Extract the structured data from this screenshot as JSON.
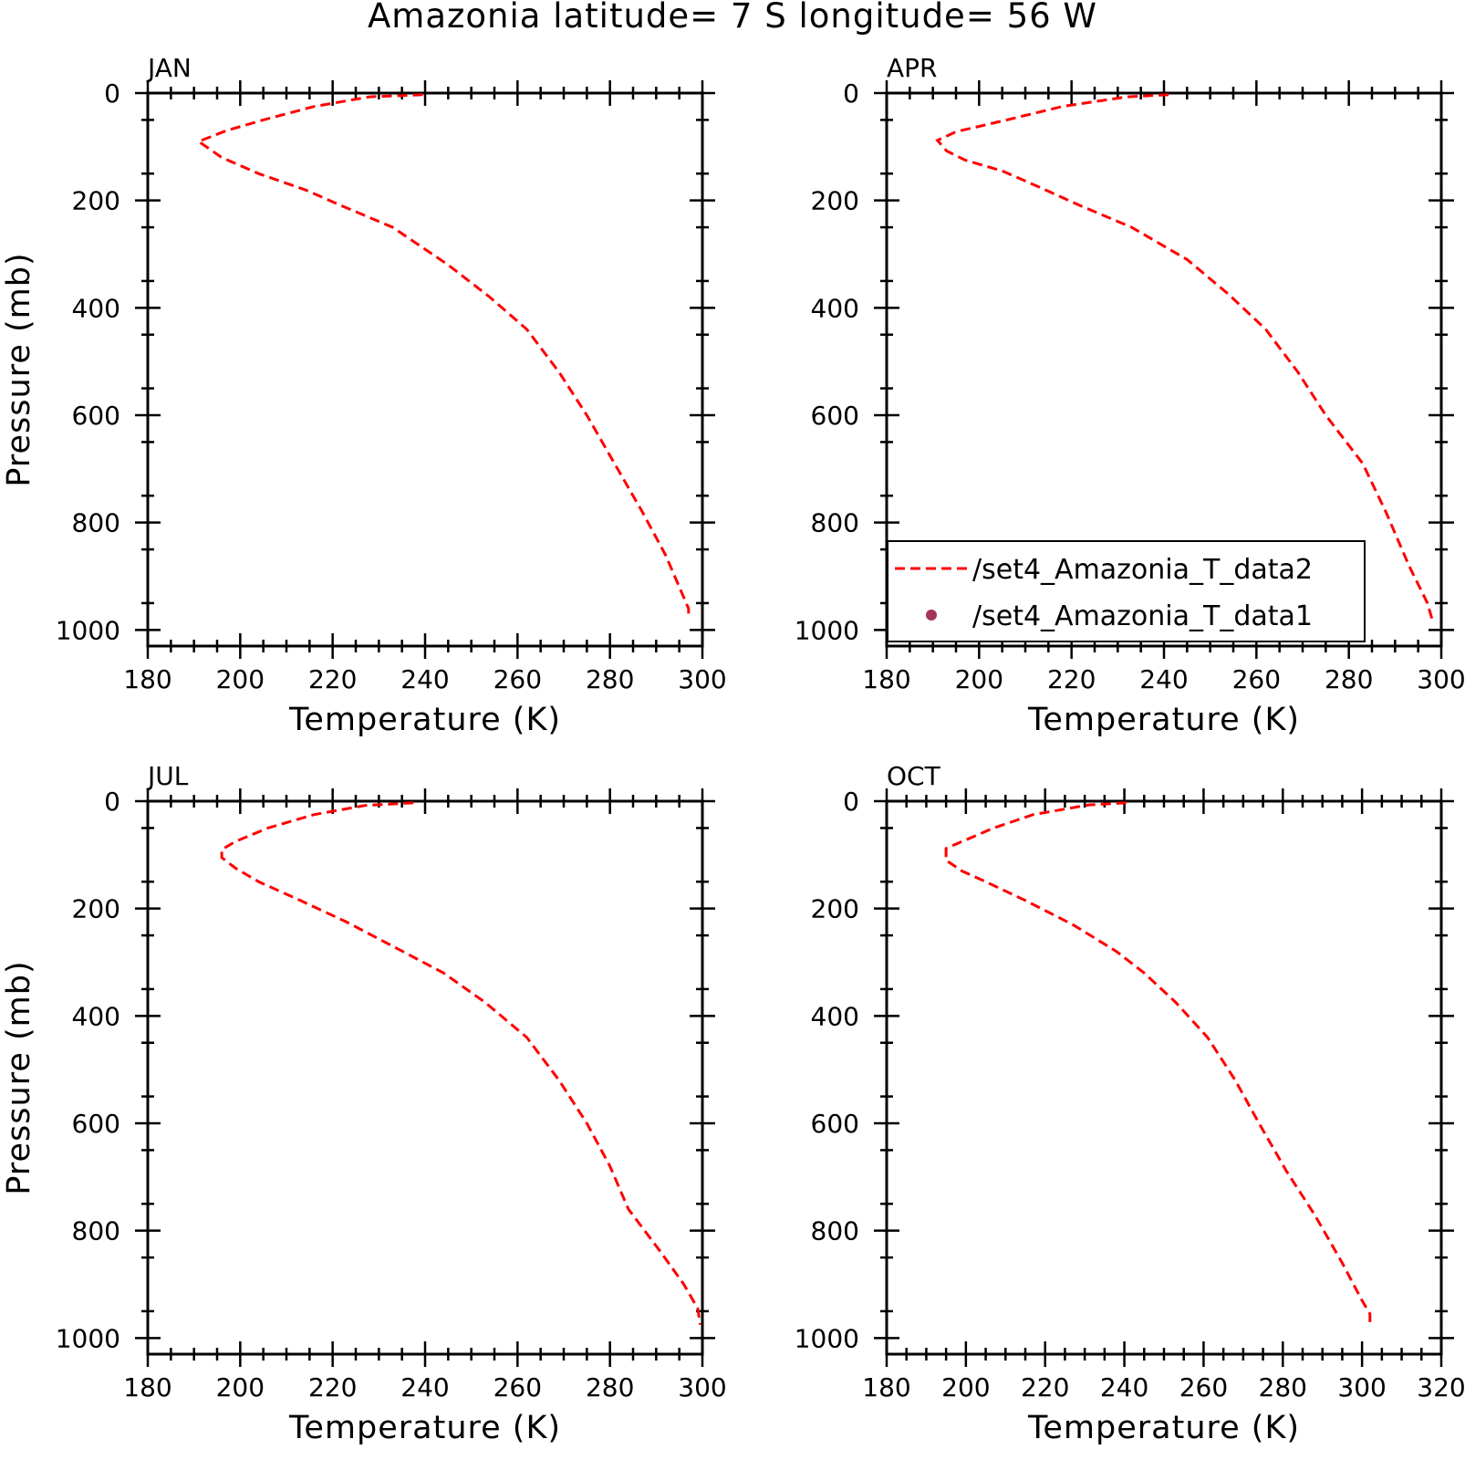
{
  "title": "Amazonia  latitude= 7 S longitude= 56 W",
  "legend": {
    "entries": [
      {
        "label": "/set4_Amazonia_T_data2",
        "style": "dashed-line",
        "color": "#ff0000"
      },
      {
        "label": "/set4_Amazonia_T_data1",
        "style": "dot",
        "color": "#a8325e"
      }
    ]
  },
  "chart_data": [
    {
      "type": "line",
      "panel": "JAN",
      "xlabel": "Temperature (K)",
      "ylabel": "Pressure (mb)",
      "xlim": [
        180,
        300
      ],
      "ylim": [
        1030,
        0
      ],
      "y_inverted": true,
      "xticks": [
        "180",
        "200",
        "220",
        "240",
        "260",
        "280",
        "300"
      ],
      "yticks": [
        "0",
        "200",
        "400",
        "600",
        "800",
        "1000"
      ],
      "series": [
        {
          "color": "#ff0000",
          "style": "dashed",
          "points": [
            [
              239.5,
              3
            ],
            [
              228,
              7
            ],
            [
              216,
              25
            ],
            [
              205,
              50
            ],
            [
              197,
              70
            ],
            [
              191,
              90
            ],
            [
              196,
              120
            ],
            [
              204,
              150
            ],
            [
              214,
              180
            ],
            [
              222,
              210
            ],
            [
              233,
              250
            ],
            [
              245,
              320
            ],
            [
              254,
              380
            ],
            [
              262,
              440
            ],
            [
              269,
              520
            ],
            [
              275,
              600
            ],
            [
              281,
              690
            ],
            [
              287,
              780
            ],
            [
              292,
              860
            ],
            [
              295,
              920
            ],
            [
              297,
              960
            ],
            [
              297,
              975
            ]
          ]
        }
      ]
    },
    {
      "type": "line",
      "panel": "APR",
      "xlabel": "Temperature (K)",
      "ylabel": "",
      "xlim": [
        180,
        300
      ],
      "ylim": [
        1030,
        0
      ],
      "y_inverted": true,
      "xticks": [
        "180",
        "200",
        "220",
        "240",
        "260",
        "280",
        "300"
      ],
      "yticks": [
        "0",
        "200",
        "400",
        "600",
        "800",
        "1000"
      ],
      "legend_placement": "bottom-left",
      "series": [
        {
          "color": "#ff0000",
          "style": "dashed",
          "points": [
            [
              241,
              3
            ],
            [
              232,
              7
            ],
            [
              218,
              25
            ],
            [
              206,
              50
            ],
            [
              195,
              72
            ],
            [
              191,
              88
            ],
            [
              193,
              108
            ],
            [
              197,
              125
            ],
            [
              205,
              145
            ],
            [
              213,
              175
            ],
            [
              222,
              210
            ],
            [
              233,
              250
            ],
            [
              245,
              310
            ],
            [
              254,
              375
            ],
            [
              262,
              440
            ],
            [
              269,
              520
            ],
            [
              275,
              600
            ],
            [
              283,
              690
            ],
            [
              288,
              780
            ],
            [
              293,
              880
            ],
            [
              297,
              950
            ],
            [
              298,
              980
            ]
          ]
        }
      ]
    },
    {
      "type": "line",
      "panel": "JUL",
      "xlabel": "Temperature (K)",
      "ylabel": "Pressure (mb)",
      "xlim": [
        180,
        300
      ],
      "ylim": [
        1030,
        0
      ],
      "y_inverted": true,
      "xticks": [
        "180",
        "200",
        "220",
        "240",
        "260",
        "280",
        "300"
      ],
      "yticks": [
        "0",
        "200",
        "400",
        "600",
        "800",
        "1000"
      ],
      "series": [
        {
          "color": "#ff0000",
          "style": "dashed",
          "points": [
            [
              237.5,
              3
            ],
            [
              227,
              8
            ],
            [
              216,
              25
            ],
            [
              206,
              50
            ],
            [
              199,
              75
            ],
            [
              196,
              90
            ],
            [
              196,
              105
            ],
            [
              199,
              125
            ],
            [
              204,
              150
            ],
            [
              213,
              185
            ],
            [
              223,
              225
            ],
            [
              233,
              270
            ],
            [
              244,
              320
            ],
            [
              253,
              375
            ],
            [
              262,
              440
            ],
            [
              269,
              520
            ],
            [
              275,
              600
            ],
            [
              280,
              680
            ],
            [
              284,
              760
            ],
            [
              291,
              840
            ],
            [
              296,
              900
            ],
            [
              299,
              945
            ],
            [
              299.5,
              975
            ]
          ]
        }
      ]
    },
    {
      "type": "line",
      "panel": "OCT",
      "xlabel": "Temperature (K)",
      "ylabel": "",
      "xlim": [
        180,
        320
      ],
      "ylim": [
        1030,
        0
      ],
      "y_inverted": true,
      "xticks": [
        "180",
        "200",
        "220",
        "240",
        "260",
        "280",
        "300",
        "320"
      ],
      "yticks": [
        "0",
        "200",
        "400",
        "600",
        "800",
        "1000"
      ],
      "series": [
        {
          "color": "#ff0000",
          "style": "dashed",
          "points": [
            [
              240.5,
              3
            ],
            [
              231,
              7
            ],
            [
              217,
              25
            ],
            [
              207,
              50
            ],
            [
              200,
              72
            ],
            [
              195,
              88
            ],
            [
              195,
              110
            ],
            [
              199,
              130
            ],
            [
              205,
              150
            ],
            [
              215,
              185
            ],
            [
              227,
              230
            ],
            [
              238,
              280
            ],
            [
              245,
              320
            ],
            [
              253,
              375
            ],
            [
              261,
              440
            ],
            [
              268,
              520
            ],
            [
              274,
              600
            ],
            [
              281,
              690
            ],
            [
              288,
              770
            ],
            [
              295,
              860
            ],
            [
              300,
              930
            ],
            [
              302,
              955
            ],
            [
              302,
              975
            ]
          ]
        }
      ]
    }
  ]
}
